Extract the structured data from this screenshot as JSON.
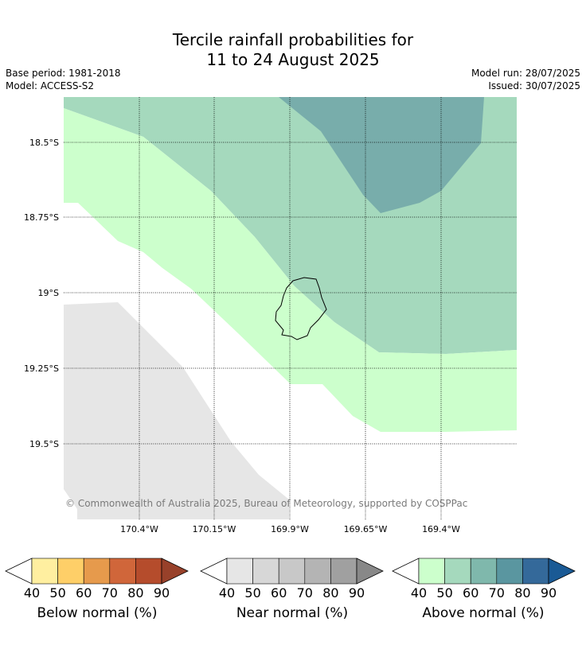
{
  "header": {
    "title_line1": "Tercile rainfall probabilities for",
    "title_line2": "11 to 24 August 2025",
    "base_period": "Base period: 1981-2018",
    "model": "Model: ACCESS-S2",
    "model_run": "Model run: 28/07/2025",
    "issued": "Issued: 30/07/2025"
  },
  "map": {
    "lat_labels": [
      "18.5°S",
      "18.75°S",
      "19°S",
      "19.25°S",
      "19.5°S"
    ],
    "lon_labels": [
      "170.4°W",
      "170.15°W",
      "169.9°W",
      "169.65°W",
      "169.4°W"
    ],
    "copyright": "© Commonwealth of Australia 2025, Bureau of Meteorology, supported by COSPPac",
    "colors": {
      "above_50_60": "#a5d9bd",
      "above_40_50": "#ccffcc",
      "above_60_70": "#78adab",
      "near_40_50": "#e6e6e6",
      "outline": "#000000"
    }
  },
  "colorbars": [
    {
      "name": "below",
      "label": "Below normal (%)",
      "ticks": [
        "40",
        "50",
        "60",
        "70",
        "80",
        "90"
      ],
      "under": "#ffffff",
      "colors": [
        "#ffefa0",
        "#fecf68",
        "#e69a4c",
        "#d0663a",
        "#b54c2c"
      ],
      "over": "#98412a"
    },
    {
      "name": "near",
      "label": "Near normal (%)",
      "ticks": [
        "40",
        "50",
        "60",
        "70",
        "80",
        "90"
      ],
      "under": "#ffffff",
      "colors": [
        "#e6e6e6",
        "#d7d7d7",
        "#c8c8c8",
        "#b4b4b4",
        "#a0a0a0"
      ],
      "over": "#888888"
    },
    {
      "name": "above",
      "label": "Above normal (%)",
      "ticks": [
        "40",
        "50",
        "60",
        "70",
        "80",
        "90"
      ],
      "under": "#ffffff",
      "colors": [
        "#ccffcc",
        "#a5d9bd",
        "#7fb8ac",
        "#5a96a0",
        "#34699a"
      ],
      "over": "#1a5a95"
    }
  ]
}
